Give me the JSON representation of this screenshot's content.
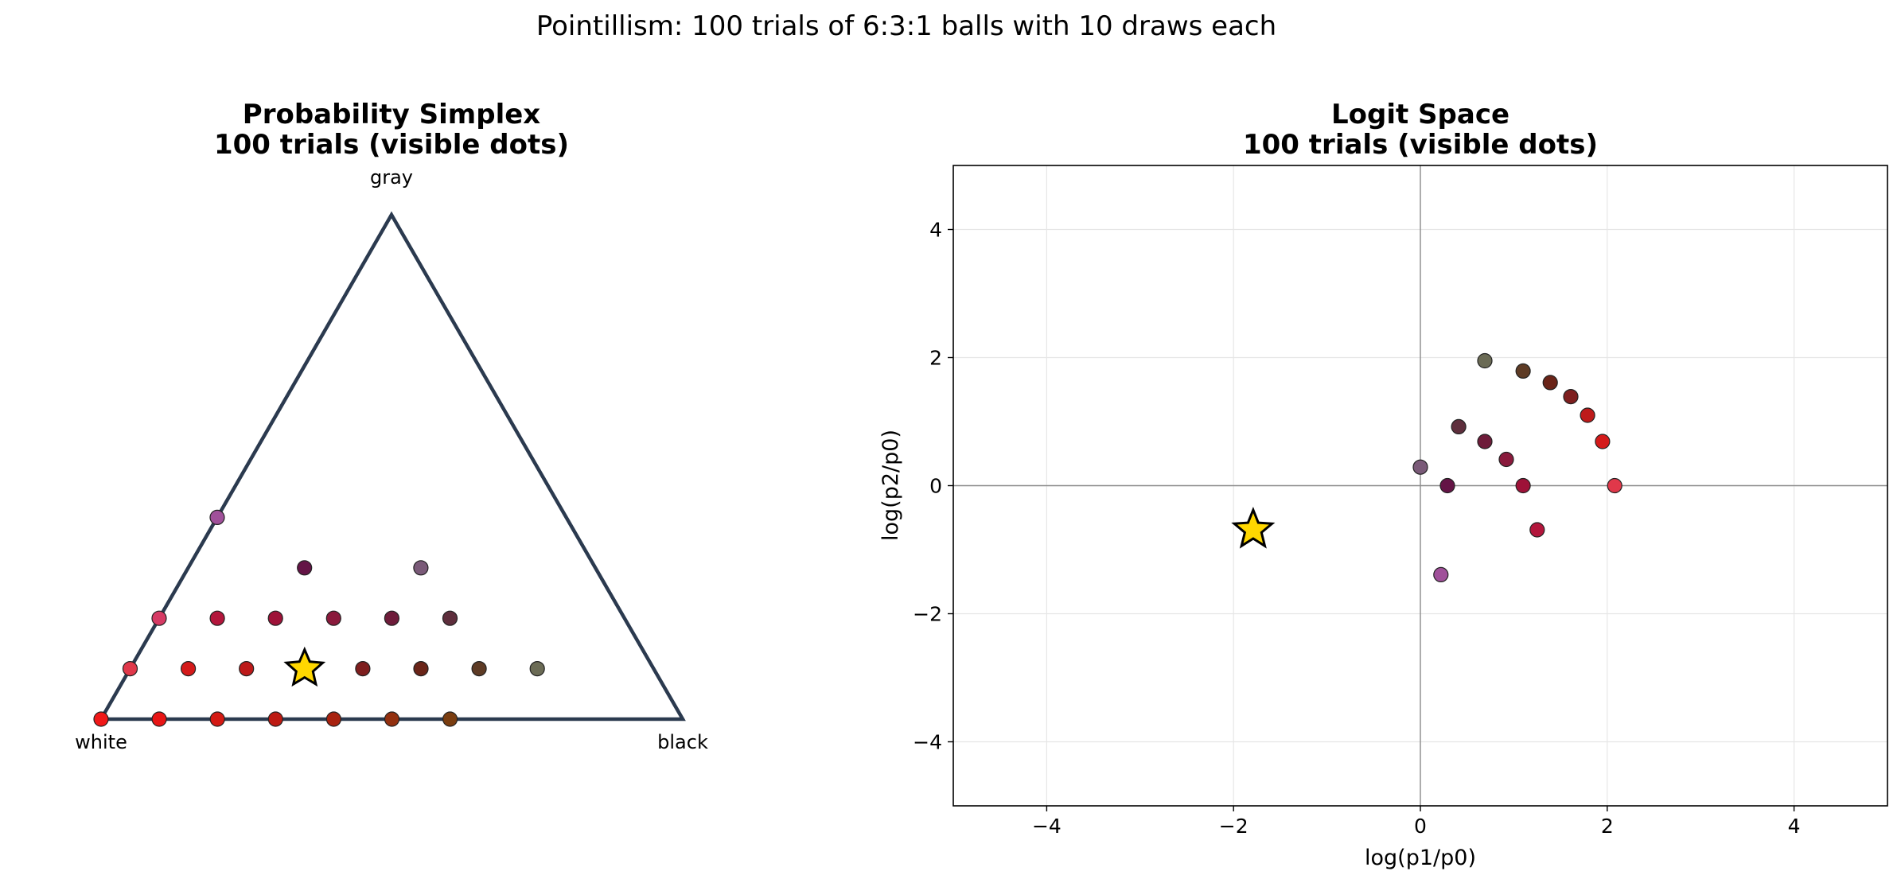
{
  "figure": {
    "suptitle": "Pointillism: 100 trials of 6:3:1 balls with 10 draws each"
  },
  "chart_data": [
    {
      "type": "scatter",
      "subplot": "left",
      "title_line1": "Probability Simplex",
      "title_line2": "100 trials (visible dots)",
      "vertex_labels": {
        "white": "white",
        "black": "black",
        "gray": "gray"
      },
      "triangle_color": "#2b3a4f",
      "points": [
        {
          "white": 1.0,
          "black": 0.0,
          "gray": 0.0,
          "color": "#f01818"
        },
        {
          "white": 0.9,
          "black": 0.1,
          "gray": 0.0,
          "color": "#e81515"
        },
        {
          "white": 0.8,
          "black": 0.2,
          "gray": 0.0,
          "color": "#d41a14"
        },
        {
          "white": 0.7,
          "black": 0.3,
          "gray": 0.0,
          "color": "#bd1a12"
        },
        {
          "white": 0.6,
          "black": 0.4,
          "gray": 0.0,
          "color": "#a8220f"
        },
        {
          "white": 0.5,
          "black": 0.5,
          "gray": 0.0,
          "color": "#93300f"
        },
        {
          "white": 0.4,
          "black": 0.6,
          "gray": 0.0,
          "color": "#7a3d10"
        },
        {
          "white": 0.9,
          "black": 0.0,
          "gray": 0.1,
          "color": "#e0384a"
        },
        {
          "white": 0.8,
          "black": 0.1,
          "gray": 0.1,
          "color": "#d41a1a"
        },
        {
          "white": 0.7,
          "black": 0.2,
          "gray": 0.1,
          "color": "#bd1a1a"
        },
        {
          "white": 0.5,
          "black": 0.4,
          "gray": 0.1,
          "color": "#7e1e1e"
        },
        {
          "white": 0.4,
          "black": 0.5,
          "gray": 0.1,
          "color": "#6a2418"
        },
        {
          "white": 0.3,
          "black": 0.6,
          "gray": 0.1,
          "color": "#5e3b25"
        },
        {
          "white": 0.2,
          "black": 0.7,
          "gray": 0.1,
          "color": "#6b6b55"
        },
        {
          "white": 0.8,
          "black": 0.0,
          "gray": 0.2,
          "color": "#d63a64"
        },
        {
          "white": 0.7,
          "black": 0.1,
          "gray": 0.2,
          "color": "#b3163c"
        },
        {
          "white": 0.6,
          "black": 0.2,
          "gray": 0.2,
          "color": "#9e1238"
        },
        {
          "white": 0.5,
          "black": 0.3,
          "gray": 0.2,
          "color": "#8a1a3c"
        },
        {
          "white": 0.4,
          "black": 0.4,
          "gray": 0.2,
          "color": "#6e1c3a"
        },
        {
          "white": 0.3,
          "black": 0.5,
          "gray": 0.2,
          "color": "#5e2e3c"
        },
        {
          "white": 0.5,
          "black": 0.2,
          "gray": 0.3,
          "color": "#641446"
        },
        {
          "white": 0.3,
          "black": 0.4,
          "gray": 0.3,
          "color": "#7a5a78"
        },
        {
          "white": 0.6,
          "black": 0.0,
          "gray": 0.4,
          "color": "#a0509a"
        }
      ],
      "star": {
        "white": 0.6,
        "black": 0.3,
        "gray": 0.1,
        "color": "#ffd700"
      }
    },
    {
      "type": "scatter",
      "subplot": "right",
      "title_line1": "Logit Space",
      "title_line2": "100 trials (visible dots)",
      "xlabel": "log(p1/p0)",
      "ylabel": "log(p2/p0)",
      "xlim": [
        -5,
        5
      ],
      "ylim": [
        -5,
        5
      ],
      "xticks": [
        -4,
        -2,
        0,
        2,
        4
      ],
      "yticks": [
        -4,
        -2,
        0,
        2,
        4
      ],
      "xtick_labels": [
        "−4",
        "−2",
        "0",
        "2",
        "4"
      ],
      "ytick_labels": [
        "−4",
        "−2",
        "0",
        "2",
        "4"
      ],
      "grid": true,
      "points": [
        {
          "x": 0.69,
          "y": 1.95,
          "color": "#6b6b55"
        },
        {
          "x": 1.1,
          "y": 1.79,
          "color": "#5e3b25"
        },
        {
          "x": 1.39,
          "y": 1.61,
          "color": "#6a2418"
        },
        {
          "x": 1.61,
          "y": 1.39,
          "color": "#7e1e1e"
        },
        {
          "x": 1.79,
          "y": 1.1,
          "color": "#bd1a1a"
        },
        {
          "x": 1.95,
          "y": 0.69,
          "color": "#d41a1a"
        },
        {
          "x": 2.08,
          "y": 0.0,
          "color": "#e0384a"
        },
        {
          "x": 0.41,
          "y": 0.92,
          "color": "#5e2e3c"
        },
        {
          "x": 0.69,
          "y": 0.69,
          "color": "#6e1c3a"
        },
        {
          "x": 0.92,
          "y": 0.41,
          "color": "#8a1a3c"
        },
        {
          "x": 1.1,
          "y": 0.0,
          "color": "#9e1238"
        },
        {
          "x": 0.0,
          "y": 0.29,
          "color": "#7a5a78"
        },
        {
          "x": 0.29,
          "y": 0.0,
          "color": "#641446"
        },
        {
          "x": 1.25,
          "y": -0.69,
          "color": "#b3163c"
        },
        {
          "x": 0.22,
          "y": -1.39,
          "color": "#a0509a"
        }
      ],
      "star": {
        "x": -1.79,
        "y": -0.69,
        "color": "#ffd700"
      }
    }
  ]
}
